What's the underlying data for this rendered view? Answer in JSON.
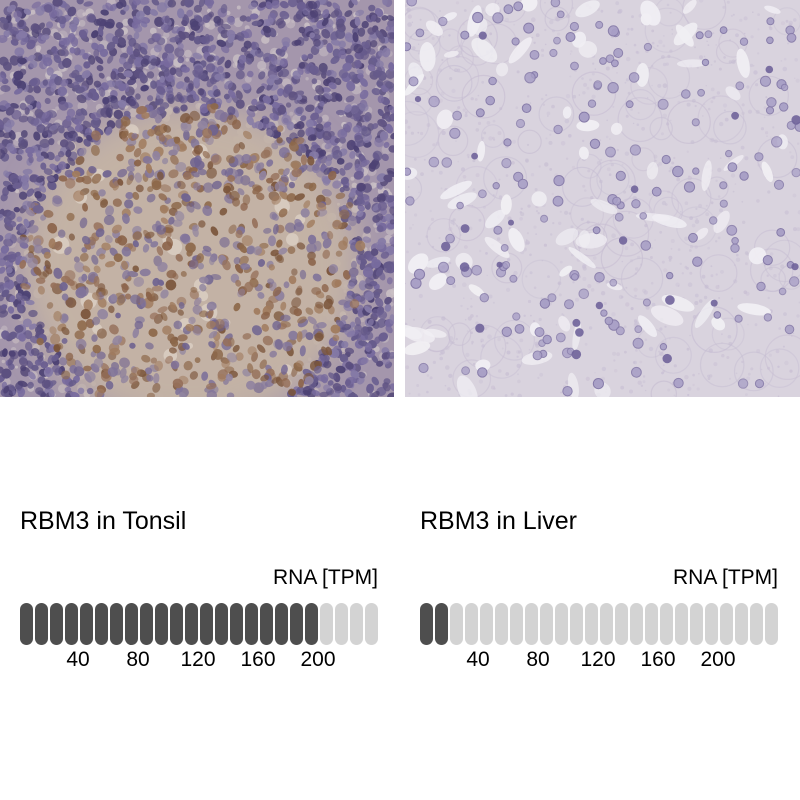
{
  "figure": {
    "background": "#ffffff",
    "description": "Immunohistochemistry staining figure with RNA expression pill-bar scales"
  },
  "colors": {
    "bar_filled": "#4e4e4e",
    "bar_empty": "#d3d3d3",
    "text": "#000000"
  },
  "panels": [
    {
      "id": "tonsil",
      "title": "RBM3 in Tonsil",
      "rna_label": "RNA [TPM]",
      "image_name": "ihc-tissue-tonsil",
      "bars": {
        "total": 24,
        "filled": 20
      },
      "ticks": [
        "40",
        "80",
        "120",
        "160",
        "200"
      ]
    },
    {
      "id": "liver",
      "title": "RBM3 in Liver",
      "rna_label": "RNA [TPM]",
      "image_name": "ihc-tissue-liver",
      "bars": {
        "total": 24,
        "filled": 2
      },
      "ticks": [
        "40",
        "80",
        "120",
        "160",
        "200"
      ]
    }
  ],
  "chart_data": [
    {
      "type": "bar",
      "title": "RBM3 in Tonsil",
      "ylabel": "RNA [TPM]",
      "tick_labels": [
        40,
        80,
        120,
        160,
        200
      ],
      "units_per_bar": 10,
      "total_bars": 24,
      "filled_bars": 20,
      "approx_value_tpm": 200,
      "scale_max": 240,
      "legend_position": "none",
      "grid": false
    },
    {
      "type": "bar",
      "title": "RBM3 in Liver",
      "ylabel": "RNA [TPM]",
      "tick_labels": [
        40,
        80,
        120,
        160,
        200
      ],
      "units_per_bar": 10,
      "total_bars": 24,
      "filled_bars": 2,
      "approx_value_tpm": 20,
      "scale_max": 240,
      "legend_position": "none",
      "grid": false
    }
  ]
}
